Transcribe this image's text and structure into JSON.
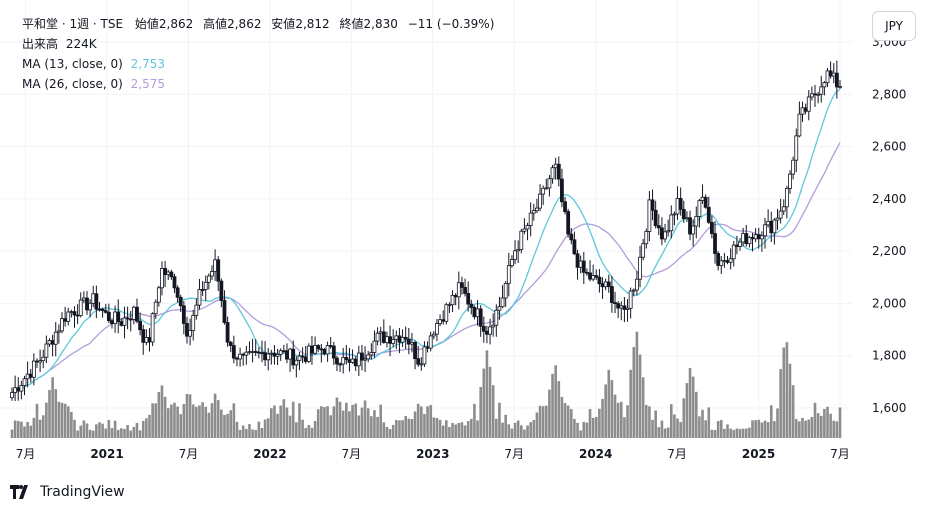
{
  "header": {
    "symbol": "平和堂 · 1週 · TSE",
    "open_label": "始値",
    "open": "2,862",
    "high_label": "高値",
    "high": "2,862",
    "low_label": "安値",
    "low": "2,812",
    "close_label": "終値",
    "close": "2,830",
    "change": "−11 (−0.39%)"
  },
  "volume": {
    "label": "出来高",
    "value": "224K"
  },
  "indicators": [
    {
      "label": "MA (13, close, 0)",
      "value": "2,753",
      "color": "#5ec8dc"
    },
    {
      "label": "MA (26, close, 0)",
      "value": "2,575",
      "color": "#b39ddb"
    }
  ],
  "currency_button": "JPY",
  "brand": "TradingView",
  "colors": {
    "candle": "#131722",
    "volume": "#8c8c8c",
    "grid": "#f0f3fa"
  },
  "chart_data": {
    "type": "candlestick",
    "frequency": "weekly",
    "y_ticks": [
      1600,
      1800,
      2000,
      2200,
      2400,
      2600,
      2800,
      3000
    ],
    "y_tick_labels": [
      "1,600",
      "1,800",
      "2,000",
      "2,200",
      "2,400",
      "2,600",
      "2,800",
      "3,000"
    ],
    "x_ticks": [
      {
        "label": "7月",
        "date": "2020-07",
        "year": false
      },
      {
        "label": "2021",
        "date": "2021-01",
        "year": true
      },
      {
        "label": "7月",
        "date": "2021-07",
        "year": false
      },
      {
        "label": "2022",
        "date": "2022-01",
        "year": true
      },
      {
        "label": "7月",
        "date": "2022-07",
        "year": false
      },
      {
        "label": "2023",
        "date": "2023-01",
        "year": true
      },
      {
        "label": "7月",
        "date": "2023-07",
        "year": false
      },
      {
        "label": "2024",
        "date": "2024-01",
        "year": true
      },
      {
        "label": "7月",
        "date": "2024-07",
        "year": false
      },
      {
        "label": "2025",
        "date": "2025-01",
        "year": true
      },
      {
        "label": "7月",
        "date": "2025-07",
        "year": false
      }
    ],
    "x_range": [
      "2020-06",
      "2025-07"
    ],
    "close_keypoints": [
      [
        "2020-06",
        1660
      ],
      [
        "2020-08",
        1780
      ],
      [
        "2020-10",
        1960
      ],
      [
        "2020-12",
        2010
      ],
      [
        "2021-01",
        1950
      ],
      [
        "2021-02",
        1930
      ],
      [
        "2021-03",
        1970
      ],
      [
        "2021-04",
        1830
      ],
      [
        "2021-05",
        2130
      ],
      [
        "2021-06",
        2080
      ],
      [
        "2021-07",
        1880
      ],
      [
        "2021-08",
        2060
      ],
      [
        "2021-09",
        2150
      ],
      [
        "2021-10",
        1830
      ],
      [
        "2021-11",
        1780
      ],
      [
        "2022-01",
        1820
      ],
      [
        "2022-03",
        1790
      ],
      [
        "2022-05",
        1830
      ],
      [
        "2022-07",
        1760
      ],
      [
        "2022-09",
        1870
      ],
      [
        "2022-11",
        1880
      ],
      [
        "2022-12",
        1780
      ],
      [
        "2023-01",
        1900
      ],
      [
        "2023-03",
        2060
      ],
      [
        "2023-05",
        1900
      ],
      [
        "2023-06",
        2000
      ],
      [
        "2023-07",
        2200
      ],
      [
        "2023-09",
        2400
      ],
      [
        "2023-10",
        2530
      ],
      [
        "2023-11",
        2250
      ],
      [
        "2023-12",
        2120
      ],
      [
        "2024-02",
        2050
      ],
      [
        "2024-03",
        1950
      ],
      [
        "2024-04",
        2100
      ],
      [
        "2024-05",
        2380
      ],
      [
        "2024-06",
        2250
      ],
      [
        "2024-07",
        2380
      ],
      [
        "2024-08",
        2280
      ],
      [
        "2024-09",
        2420
      ],
      [
        "2024-10",
        2150
      ],
      [
        "2024-12",
        2250
      ],
      [
        "2025-02",
        2300
      ],
      [
        "2025-03",
        2400
      ],
      [
        "2025-04",
        2700
      ],
      [
        "2025-06",
        2880
      ],
      [
        "2025-07",
        2830
      ]
    ],
    "volume_spikes": [
      [
        "2020-09",
        1.0
      ],
      [
        "2021-05",
        0.9
      ],
      [
        "2021-07",
        0.8
      ],
      [
        "2021-09",
        0.75
      ],
      [
        "2022-02",
        0.65
      ],
      [
        "2022-06",
        0.7
      ],
      [
        "2022-08",
        0.62
      ],
      [
        "2022-12",
        0.6
      ],
      [
        "2023-05",
        1.45
      ],
      [
        "2023-10",
        1.25
      ],
      [
        "2024-02",
        1.15
      ],
      [
        "2024-04",
        1.8
      ],
      [
        "2024-08",
        1.2
      ],
      [
        "2025-03",
        1.7
      ],
      [
        "2025-06",
        0.55
      ]
    ]
  }
}
